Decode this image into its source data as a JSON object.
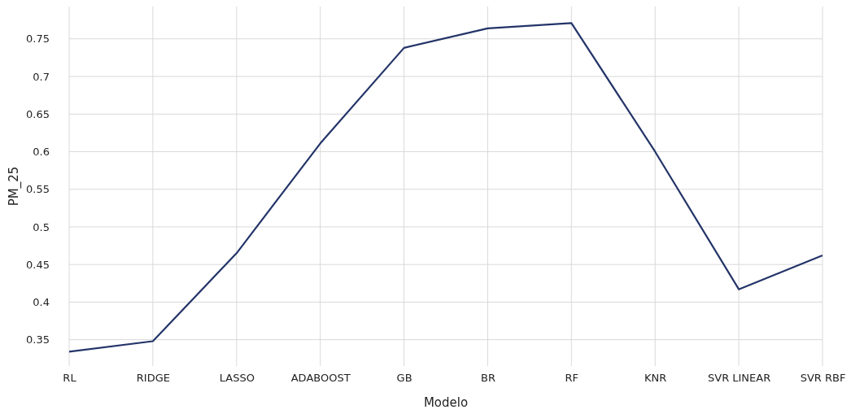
{
  "chart_data": {
    "type": "line",
    "xlabel": "Modelo",
    "ylabel": "PM_25",
    "categories": [
      "RL",
      "RIDGE",
      "LASSO",
      "ADABOOST",
      "GB",
      "BR",
      "RF",
      "KNR",
      "SVR LINEAR",
      "SVR RBF"
    ],
    "series": [
      {
        "color": "#233468",
        "values": [
          0.334,
          0.348,
          0.465,
          0.611,
          0.738,
          0.764,
          0.771,
          0.6,
          0.417,
          0.462
        ]
      }
    ],
    "ylim": [
      0.315,
      0.793
    ],
    "yticks": [
      0.35,
      0.4,
      0.45,
      0.5,
      0.55,
      0.6,
      0.65,
      0.7,
      0.75
    ],
    "grid": true,
    "marker": "none",
    "line_style": "solid"
  }
}
